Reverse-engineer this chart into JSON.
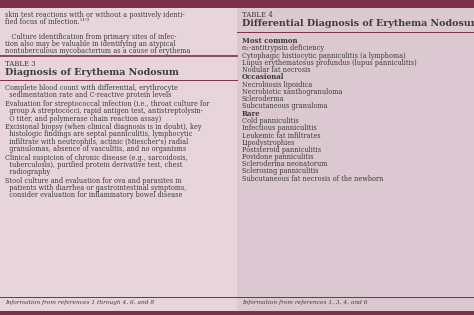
{
  "bg_color": "#dcc8d0",
  "left_panel_bg": "#e8d5db",
  "right_panel_bg": "#dcc8d0",
  "text_color": "#3d3d3d",
  "dark_bar_color": "#7a3048",
  "left_table_label": "TABLE 3",
  "left_table_title": "Diagnosis of Erythema Nodosum",
  "left_top_lines": [
    "skin test reactions with or without a positively identi-",
    "fied focus of infection.¹¹ʹ²",
    "",
    "   Culture identification from primary sites of infec-",
    "tion also may be valuable in identifying an atypical",
    "nontuberculous mycobacterium as a cause of erythema"
  ],
  "left_items": [
    [
      "Complete blood count with differential, erythrocyte",
      "  sedimentation rate and C-reactive protein levels"
    ],
    [
      "Evaluation for streptococcal infection (i.e., throat culture for",
      "  group A streptococci, rapid antigen test, antistreptolysin-",
      "  O titer, and polymerase chain reaction assay)"
    ],
    [
      "Excisional biopsy (when clinical diagnosis is in doubt), key",
      "  histologic findings are septal panniculitis, lymphocytic",
      "  infiltrate with neutrophils, actinic (Miescher's) radial",
      "  granulomas, absence of vasculitis, and no organisms"
    ],
    [
      "Clinical suspicion of chronic disease (e.g., sarcoidosis,",
      "  tuberculosis), purified protein derivative test, chest",
      "  radiography"
    ],
    [
      "Stool culture and evaluation for ova and parasites in",
      "  patients with diarrhea or gastrointestinal symptoms,",
      "  consider evaluation for inflammatory bowel disease"
    ]
  ],
  "left_footer": "Information from references 1 through 4, 6, and 8",
  "right_table_label": "TABLE 4",
  "right_table_title": "Differential Diagnosis of Erythema Nodosum",
  "right_sections": [
    {
      "heading": "Most common",
      "items": [
        "α₁-antitrypsin deficiency",
        "Cytophagic histiocytic panniculitis (a lymphoma)",
        "Lupus erythematosus profundus (lupus panniculitis)",
        "Nodular fat necrosis"
      ]
    },
    {
      "heading": "Occasional",
      "items": [
        "Necrobiosis lipoidica",
        "Necrobiotic xanthogranuloma",
        "Scleroderma",
        "Subcutaneous granuloma"
      ]
    },
    {
      "heading": "Rare",
      "items": [
        "Cold panniculitis",
        "Infectious panniculitis",
        "Leukemic fat infiltrates",
        "Lipodystrophies",
        "Poststeroid panniculitis",
        "Povidone panniculitis",
        "Scleroderma neonatorum",
        "Sclerosing panniculitis",
        "Subcutaneous fat necrosis of the newborn"
      ]
    }
  ],
  "right_footer": "Information from references 1, 3, 4, and 6"
}
